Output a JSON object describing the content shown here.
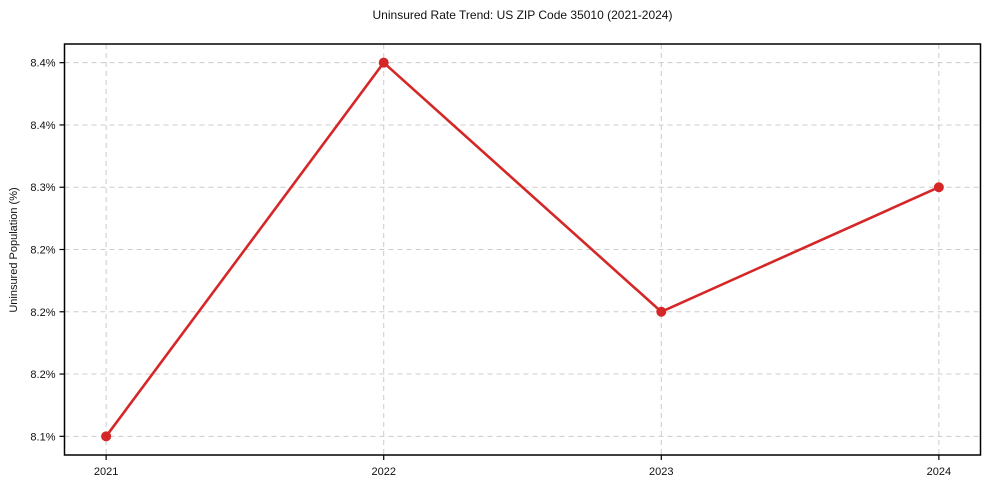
{
  "figure": {
    "background": "#ffffff"
  },
  "chart_data": {
    "type": "line",
    "title": "Uninsured Rate Trend: US ZIP Code 35010 (2021-2024)",
    "xlabel": "",
    "ylabel": "Uninsured Population (%)",
    "x": [
      2021,
      2022,
      2023,
      2024
    ],
    "categories": [
      "2021",
      "2022",
      "2023",
      "2024"
    ],
    "series": [
      {
        "name": "Uninsured Population (%)",
        "values": [
          8.1,
          8.4,
          8.2,
          8.3
        ],
        "color": "#d62728"
      }
    ],
    "xlim": [
      2020.85,
      2024.15
    ],
    "ylim": [
      8.085,
      8.415
    ],
    "x_ticks": [
      {
        "value": 2021,
        "label": "2021"
      },
      {
        "value": 2022,
        "label": "2022"
      },
      {
        "value": 2023,
        "label": "2023"
      },
      {
        "value": 2024,
        "label": "2024"
      }
    ],
    "y_ticks": [
      {
        "value": 8.1,
        "label": "8.1%"
      },
      {
        "value": 8.15,
        "label": "8.2%"
      },
      {
        "value": 8.2,
        "label": "8.2%"
      },
      {
        "value": 8.25,
        "label": "8.2%"
      },
      {
        "value": 8.3,
        "label": "8.3%"
      },
      {
        "value": 8.35,
        "label": "8.4%"
      },
      {
        "value": 8.4,
        "label": "8.4%"
      }
    ],
    "grid": {
      "show": true,
      "style": "dashed",
      "color": "#cccccc"
    },
    "legend": {
      "show": false,
      "position": "none"
    },
    "marker": {
      "shape": "circle",
      "color": "#d62728"
    },
    "line_color": "#d62728",
    "axis_color": "#000000",
    "tick_label_color": "#111111"
  }
}
